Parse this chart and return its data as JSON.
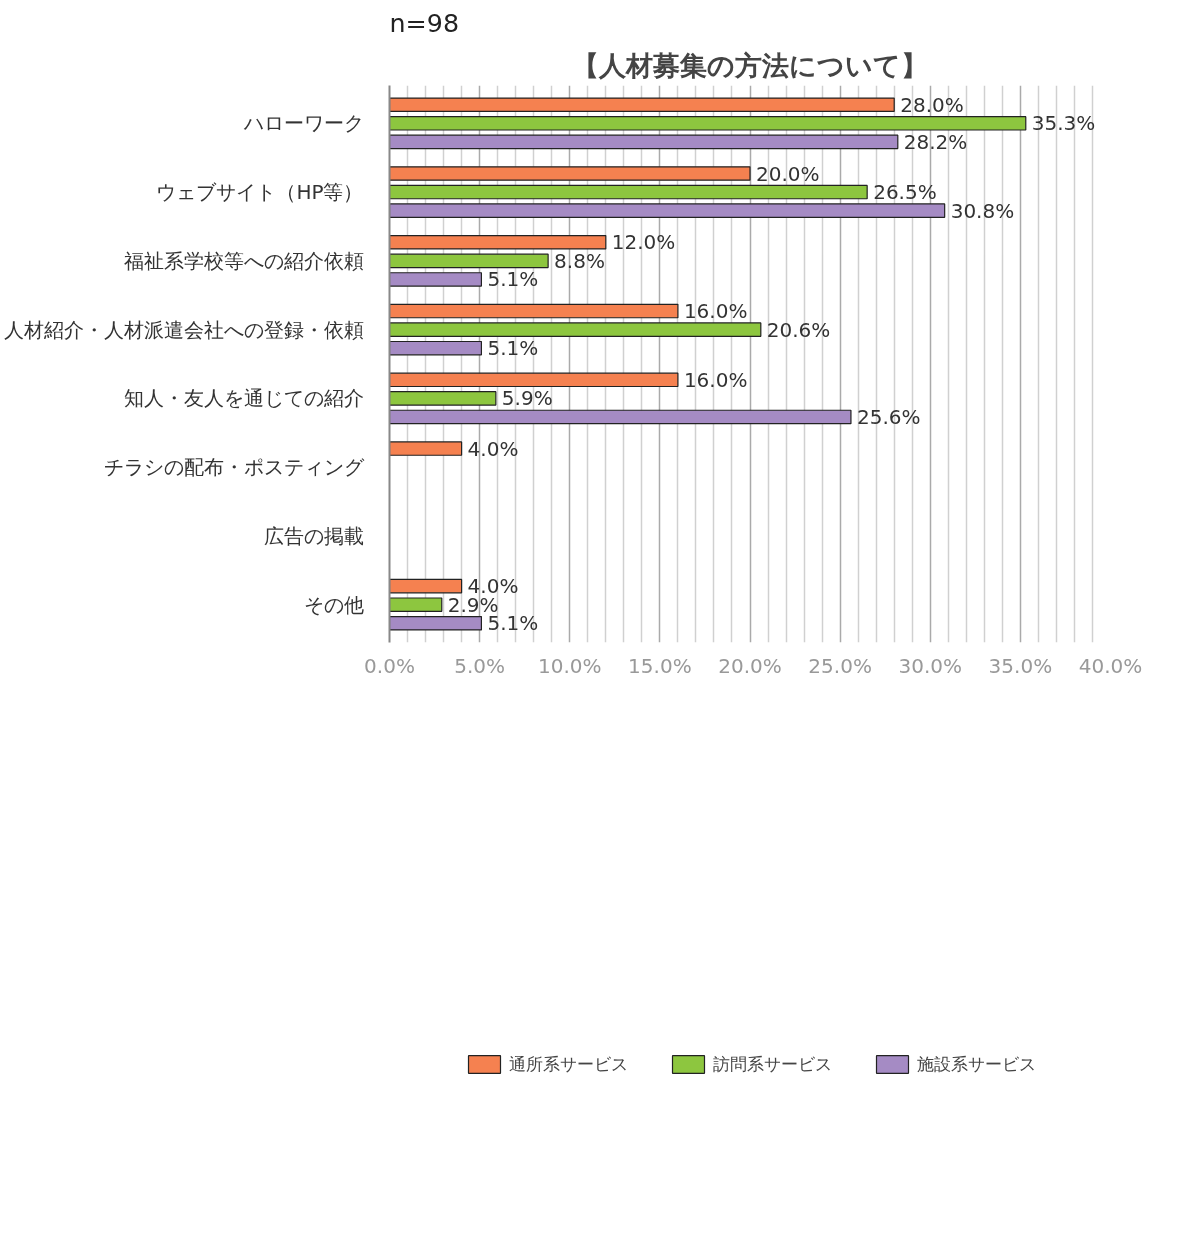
{
  "chart_data": {
    "type": "bar",
    "orientation": "horizontal",
    "title": "【人材募集の方法について】",
    "annotations": [
      "n=98"
    ],
    "categories": [
      "ハローワーク",
      "ウェブサイト（HP等）",
      "福祉系学校等への紹介依頼",
      "人材紹介・人材派遣会社への登録・依頼",
      "知人・友人を通じての紹介",
      "チラシの配布・ポスティング",
      "広告の掲載",
      "その他"
    ],
    "series": [
      {
        "name": "通所系サービス",
        "color": "#f58150",
        "values": [
          28.0,
          20.0,
          12.0,
          16.0,
          16.0,
          4.0,
          null,
          4.0
        ],
        "value_labels": [
          "28.0%",
          "20.0%",
          "12.0%",
          "16.0%",
          "16.0%",
          "4.0%",
          null,
          "4.0%"
        ]
      },
      {
        "name": "訪問系サービス",
        "color": "#8dc63f",
        "values": [
          35.3,
          26.5,
          8.8,
          20.6,
          5.9,
          null,
          null,
          2.9
        ],
        "value_labels": [
          "35.3%",
          "26.5%",
          "8.8%",
          "20.6%",
          "5.9%",
          null,
          null,
          "2.9%"
        ]
      },
      {
        "name": "施設系サービス",
        "color": "#a58bc4",
        "values": [
          28.2,
          30.8,
          5.1,
          5.1,
          25.6,
          null,
          null,
          5.1
        ],
        "value_labels": [
          "28.2%",
          "30.8%",
          "5.1%",
          "5.1%",
          "25.6%",
          null,
          null,
          "5.1%"
        ]
      }
    ],
    "xlim": [
      0,
      40
    ],
    "xticks": [
      {
        "value": 0,
        "label": "0.0%"
      },
      {
        "value": 5,
        "label": "5.0%"
      },
      {
        "value": 10,
        "label": "10.0%"
      },
      {
        "value": 15,
        "label": "15.0%"
      },
      {
        "value": 20,
        "label": "20.0%"
      },
      {
        "value": 25,
        "label": "25.0%"
      },
      {
        "value": 30,
        "label": "30.0%"
      },
      {
        "value": 35,
        "label": "35.0%"
      },
      {
        "value": 40,
        "label": "40.0%"
      }
    ],
    "grid": "x",
    "legend": "bottom"
  }
}
